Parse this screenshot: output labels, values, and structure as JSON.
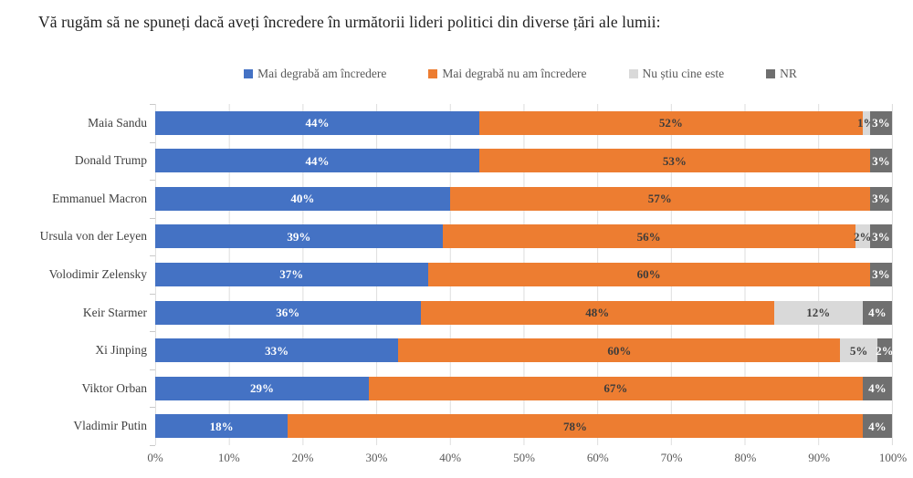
{
  "title": "Vă rugăm să ne spuneți dacă aveți încredere în următorii lideri politici din diverse țări ale lumii:",
  "chart_data": {
    "type": "bar",
    "orientation": "horizontal",
    "stacked": true,
    "grid": true,
    "legend_position": "top",
    "xlim": [
      0,
      100
    ],
    "x_ticks": [
      "0%",
      "10%",
      "20%",
      "30%",
      "40%",
      "50%",
      "60%",
      "70%",
      "80%",
      "90%",
      "100%"
    ],
    "categories": [
      "Maia Sandu",
      "Donald Trump",
      "Emmanuel Macron",
      "Ursula von der Leyen",
      "Volodimir Zelensky",
      "Keir Starmer",
      "Xi Jinping",
      "Viktor Orban",
      "Vladimir Putin"
    ],
    "series": [
      {
        "name": "Mai degrabă am încredere",
        "color": "#4472C4",
        "label_color": "#FFFFFF",
        "values": [
          44,
          44,
          40,
          39,
          37,
          36,
          33,
          29,
          18
        ]
      },
      {
        "name": "Mai degrabă nu am încredere",
        "color": "#ED7D31",
        "label_color": "#3B3B3B",
        "values": [
          52,
          53,
          57,
          56,
          60,
          48,
          60,
          67,
          78
        ]
      },
      {
        "name": "Nu știu cine este",
        "color": "#D9D9D9",
        "label_color": "#404040",
        "values": [
          1,
          0,
          0,
          2,
          0,
          12,
          5,
          0,
          0
        ]
      },
      {
        "name": "NR",
        "color": "#6F6F6F",
        "label_color": "#FFFFFF",
        "values": [
          3,
          3,
          3,
          3,
          3,
          4,
          2,
          4,
          4
        ]
      }
    ],
    "value_suffix": "%"
  }
}
